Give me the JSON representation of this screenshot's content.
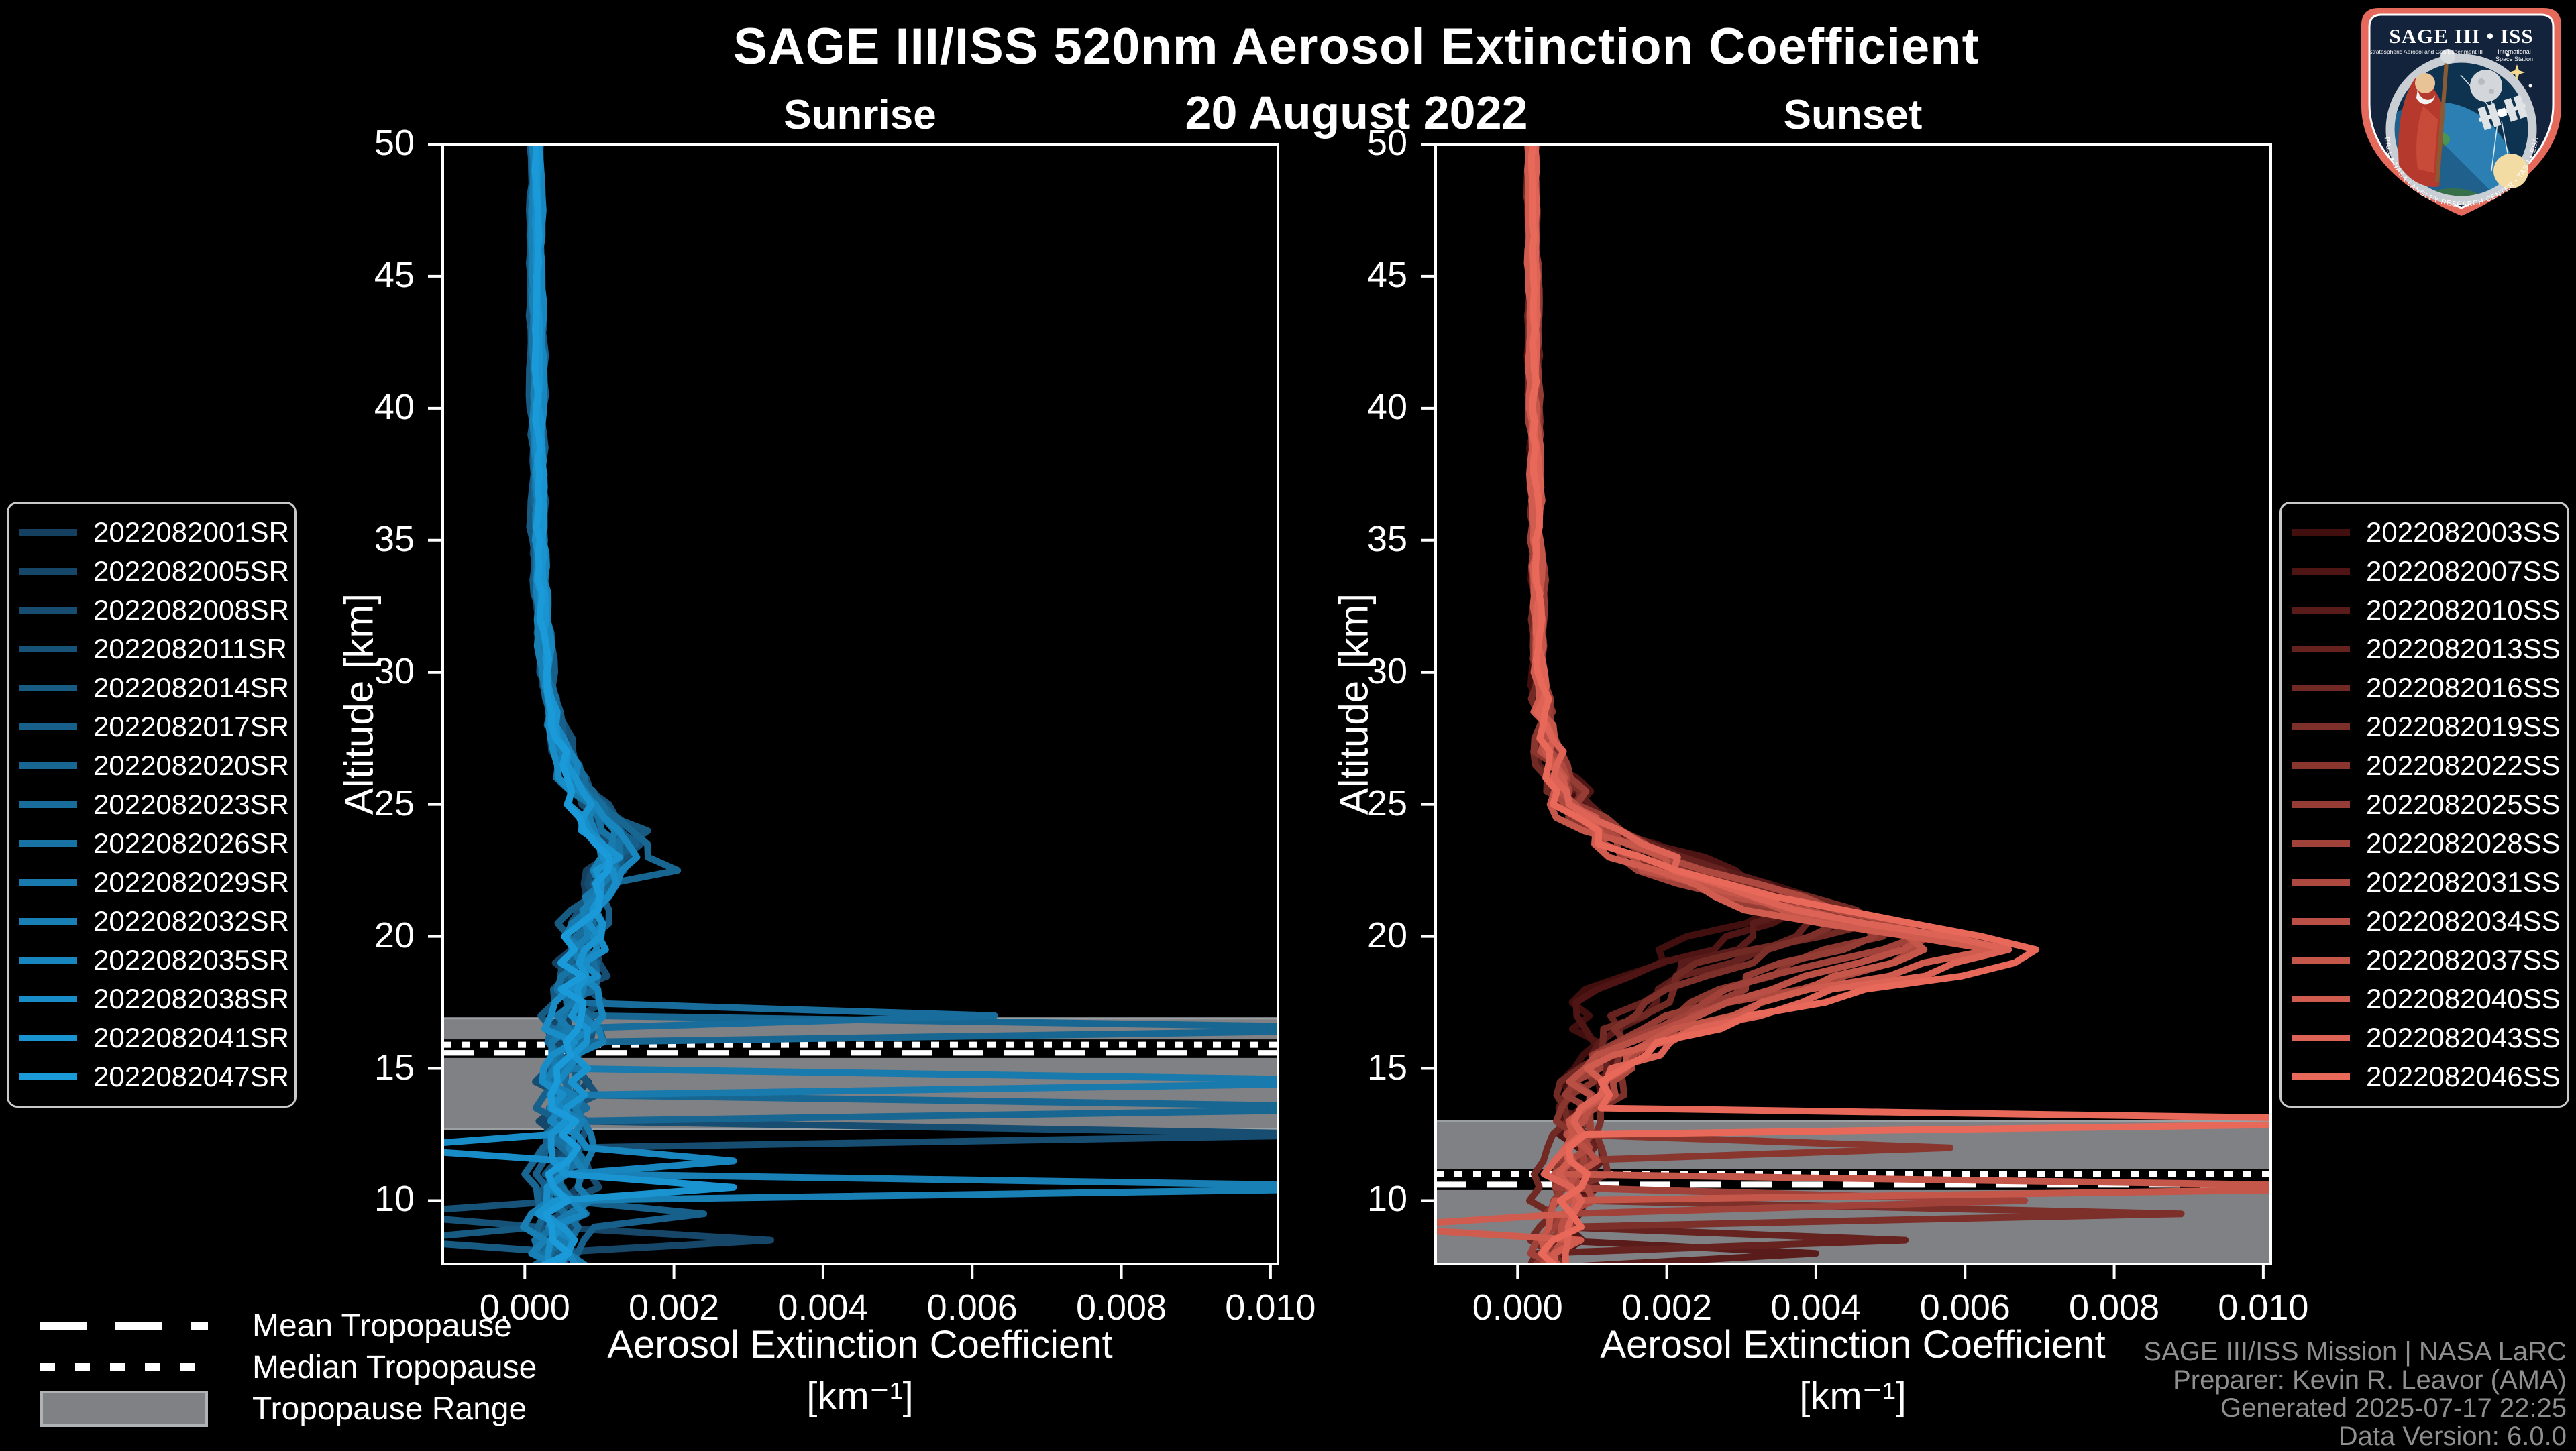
{
  "header": {
    "title": "SAGE III/ISS 520nm Aerosol Extinction Coefficient",
    "date": "20 August 2022"
  },
  "footer": {
    "lines": [
      "SAGE III/ISS Mission | NASA LaRC",
      "Preparer: Kevin R. Leavor (AMA)",
      "Generated 2025-07-17 22:25",
      "Data Version: 6.0.0"
    ]
  },
  "logo": {
    "title": "SAGE III • ISS",
    "subtitle_left": "Stratospheric Aerosol and Gas Experiment III",
    "subtitle_right_1": "International",
    "subtitle_right_2": "Space Station",
    "ring_text": "BALL • NASA LANGLEY RESEARCH CENTER • TAS-I • ESA"
  },
  "tropopause_legend": {
    "mean": "Mean Tropopause",
    "median": "Median Tropopause",
    "range": "Tropopause Range"
  },
  "colors": {
    "background": "#000000",
    "axis": "#ffffff",
    "band": "#7f8184",
    "band_edge": "#9aa0a4",
    "legend_border": "#c9c9c9",
    "footer_text": "#8f8f8f",
    "sunrise_dark": "#16405f",
    "sunrise_bright": "#1a9ad9",
    "sunset_dark": "#420f0f",
    "sunset_bright": "#e8695a"
  },
  "chart_data": [
    {
      "type": "line",
      "panel": "sunrise",
      "title": "Sunrise",
      "xlabel": "Aerosol Extinction Coefficient",
      "xlabel_units": "[km⁻¹]",
      "ylabel": "Altitude [km]",
      "xlim": [
        -0.0011,
        0.0101
      ],
      "ylim": [
        7.6,
        50
      ],
      "xticks": [
        0.0,
        0.002,
        0.004,
        0.006,
        0.008,
        0.01
      ],
      "xtick_labels": [
        "0.000",
        "0.002",
        "0.004",
        "0.006",
        "0.008",
        "0.010"
      ],
      "yticks": [
        10,
        15,
        20,
        25,
        30,
        35,
        40,
        45,
        50
      ],
      "grid": false,
      "tropopause": {
        "mean_km": 15.6,
        "median_km": 15.9,
        "range_km": [
          12.7,
          16.9
        ]
      },
      "profile_model": {
        "peak_center_km": 23.5,
        "sigma_scale_km": 2.0,
        "sigma_shift_km": 4.0,
        "base_profile": [
          [
            8,
            0.00045
          ],
          [
            10,
            0.0005
          ],
          [
            12,
            0.00055
          ],
          [
            14,
            0.0006
          ],
          [
            16,
            0.00065
          ],
          [
            18,
            0.0007
          ],
          [
            20,
            0.00075
          ],
          [
            21,
            0.0008
          ],
          [
            22,
            0.00085
          ],
          [
            23,
            0.00095
          ],
          [
            23.5,
            0.001
          ],
          [
            24,
            0.0009
          ],
          [
            25,
            0.0007
          ],
          [
            26,
            0.0006
          ],
          [
            28,
            0.0004
          ],
          [
            30,
            0.00028
          ],
          [
            35,
            0.0002
          ],
          [
            40,
            0.00018
          ],
          [
            50,
            0.00015
          ]
        ],
        "noise_amp": [
          [
            8,
            0.00032
          ],
          [
            14,
            0.0003
          ],
          [
            17,
            0.0003
          ],
          [
            20,
            0.00022
          ],
          [
            24,
            0.00018
          ],
          [
            27,
            0.0001
          ],
          [
            30,
            4e-05
          ],
          [
            50,
            2e-05
          ]
        ]
      },
      "series": [
        {
          "name": "2022082001SR",
          "color": "#16405f",
          "seed": 11,
          "offset": -6e-05,
          "peak_scale": 1.35,
          "peak_shift": -0.8,
          "spikes": []
        },
        {
          "name": "2022082005SR",
          "color": "#164668",
          "seed": 22,
          "offset": 2e-05,
          "peak_scale": 1.5,
          "peak_shift": -0.7,
          "spikes": [
            [
              8.4,
              0.0033
            ]
          ]
        },
        {
          "name": "2022082008SR",
          "color": "#174d70",
          "seed": 33,
          "offset": -3e-05,
          "peak_scale": 1.3,
          "peak_shift": -0.6,
          "spikes": [
            [
              12.5,
              0.0113
            ]
          ]
        },
        {
          "name": "2022082011SR",
          "color": "#175379",
          "seed": 44,
          "offset": 5e-05,
          "peak_scale": 1.45,
          "peak_shift": -0.5,
          "spikes": [
            [
              9.4,
              -0.002
            ]
          ]
        },
        {
          "name": "2022082014SR",
          "color": "#175a82",
          "seed": 55,
          "offset": -8e-05,
          "peak_scale": 1.6,
          "peak_shift": -0.4,
          "spikes": [
            [
              23.8,
              0.00165
            ],
            [
              8.3,
              -0.0018
            ]
          ]
        },
        {
          "name": "2022082017SR",
          "color": "#17608b",
          "seed": 66,
          "offset": 7e-05,
          "peak_scale": 1.4,
          "peak_shift": -0.3,
          "spikes": [
            [
              9.6,
              0.0024
            ]
          ]
        },
        {
          "name": "2022082020SR",
          "color": "#186793",
          "seed": 77,
          "offset": -2e-05,
          "peak_scale": 1.7,
          "peak_shift": -0.2,
          "spikes": [
            [
              22.6,
              0.00205
            ],
            [
              16.5,
              0.0125
            ],
            [
              13.4,
              0.0125
            ]
          ]
        },
        {
          "name": "2022082023SR",
          "color": "#186d9c",
          "seed": 88,
          "offset": 4e-05,
          "peak_scale": 1.3,
          "peak_shift": -0.1,
          "spikes": [
            [
              17.0,
              0.0063
            ]
          ]
        },
        {
          "name": "2022082026SR",
          "color": "#1873a5",
          "seed": 99,
          "offset": -5e-05,
          "peak_scale": 1.25,
          "peak_shift": 0.0,
          "spikes": []
        },
        {
          "name": "2022082029SR",
          "color": "#197aad",
          "seed": 110,
          "offset": 1e-05,
          "peak_scale": 1.35,
          "peak_shift": 0.1,
          "spikes": [
            [
              14.6,
              0.0125
            ]
          ]
        },
        {
          "name": "2022082032SR",
          "color": "#1980b6",
          "seed": 121,
          "offset": -4e-05,
          "peak_scale": 1.2,
          "peak_shift": 0.2,
          "spikes": [
            [
              10.35,
              0.0125
            ]
          ]
        },
        {
          "name": "2022082035SR",
          "color": "#1987bf",
          "seed": 132,
          "offset": 6e-05,
          "peak_scale": 1.25,
          "peak_shift": 0.25,
          "spikes": [
            [
              11.5,
              0.0028
            ]
          ]
        },
        {
          "name": "2022082038SR",
          "color": "#198dc8",
          "seed": 143,
          "offset": -1e-05,
          "peak_scale": 1.2,
          "peak_shift": 0.3,
          "spikes": [
            [
              12.2,
              -0.002
            ]
          ]
        },
        {
          "name": "2022082041SR",
          "color": "#1a94d0",
          "seed": 154,
          "offset": 3e-05,
          "peak_scale": 1.15,
          "peak_shift": 0.4,
          "spikes": [
            [
              10.6,
              0.0028
            ]
          ]
        },
        {
          "name": "2022082047SR",
          "color": "#1a9ad9",
          "seed": 165,
          "offset": 0.0,
          "peak_scale": 1.2,
          "peak_shift": 0.5,
          "spikes": []
        }
      ]
    },
    {
      "type": "line",
      "panel": "sunset",
      "title": "Sunset",
      "xlabel": "Aerosol Extinction Coefficient",
      "xlabel_units": "[km⁻¹]",
      "ylabel": "Altitude [km]",
      "xlim": [
        -0.0011,
        0.0101
      ],
      "ylim": [
        7.6,
        50
      ],
      "xticks": [
        0.0,
        0.002,
        0.004,
        0.006,
        0.008,
        0.01
      ],
      "xtick_labels": [
        "0.000",
        "0.002",
        "0.004",
        "0.006",
        "0.008",
        "0.010"
      ],
      "yticks": [
        10,
        15,
        20,
        25,
        30,
        35,
        40,
        45,
        50
      ],
      "grid": false,
      "tropopause": {
        "mean_km": 10.6,
        "median_km": 11.0,
        "range_km": [
          7.6,
          13.0
        ]
      },
      "profile_model": {
        "peak_center_km": 19.6,
        "sigma_scale_km": 3.2,
        "sigma_shift_km": 5.0,
        "base_profile": [
          [
            8,
            0.00065
          ],
          [
            9,
            0.0007
          ],
          [
            10,
            0.0007
          ],
          [
            11,
            0.00075
          ],
          [
            12,
            0.0008
          ],
          [
            13,
            0.0009
          ],
          [
            14,
            0.001
          ],
          [
            15,
            0.0012
          ],
          [
            16,
            0.0017
          ],
          [
            17,
            0.0026
          ],
          [
            18,
            0.0036
          ],
          [
            19,
            0.0047
          ],
          [
            19.5,
            0.005
          ],
          [
            20,
            0.0042
          ],
          [
            21,
            0.003
          ],
          [
            22,
            0.0022
          ],
          [
            23,
            0.0015
          ],
          [
            24,
            0.001
          ],
          [
            25,
            0.0007
          ],
          [
            27,
            0.0004
          ],
          [
            30,
            0.0003
          ],
          [
            40,
            0.00022
          ],
          [
            50,
            0.0002
          ]
        ],
        "noise_amp": [
          [
            8,
            0.0003
          ],
          [
            13,
            0.00025
          ],
          [
            16,
            0.0003
          ],
          [
            19,
            0.0004
          ],
          [
            22,
            0.0004
          ],
          [
            26,
            0.0002
          ],
          [
            30,
            5e-05
          ],
          [
            50,
            2e-05
          ]
        ]
      },
      "series": [
        {
          "name": "2022082003SS",
          "color": "#420f0f",
          "seed": 201,
          "offset": -5e-05,
          "peak_scale": 0.72,
          "peak_shift": -2.2,
          "spikes": []
        },
        {
          "name": "2022082007SS",
          "color": "#4e1514",
          "seed": 212,
          "offset": 3e-05,
          "peak_scale": 0.76,
          "peak_shift": -2.0,
          "spikes": []
        },
        {
          "name": "2022082010SS",
          "color": "#5a1c1a",
          "seed": 223,
          "offset": -2e-05,
          "peak_scale": 0.8,
          "peak_shift": -1.8,
          "spikes": [
            [
              8.2,
              0.004
            ]
          ]
        },
        {
          "name": "2022082013SS",
          "color": "#66221f",
          "seed": 234,
          "offset": 4e-05,
          "peak_scale": 0.84,
          "peak_shift": -1.6,
          "spikes": [
            [
              8.7,
              0.0052
            ]
          ]
        },
        {
          "name": "2022082016SS",
          "color": "#712924",
          "seed": 245,
          "offset": -6e-05,
          "peak_scale": 0.88,
          "peak_shift": -1.4,
          "spikes": []
        },
        {
          "name": "2022082019SS",
          "color": "#7d2f2a",
          "seed": 256,
          "offset": 2e-05,
          "peak_scale": 0.92,
          "peak_shift": -1.2,
          "spikes": [
            [
              9.3,
              0.0089
            ]
          ]
        },
        {
          "name": "2022082022SS",
          "color": "#89362f",
          "seed": 267,
          "offset": -3e-05,
          "peak_scale": 0.96,
          "peak_shift": -1.0,
          "spikes": [
            [
              11.9,
              0.0058
            ]
          ]
        },
        {
          "name": "2022082025SS",
          "color": "#953c35",
          "seed": 278,
          "offset": 5e-05,
          "peak_scale": 1.0,
          "peak_shift": -0.8,
          "spikes": []
        },
        {
          "name": "2022082028SS",
          "color": "#a1423a",
          "seed": 289,
          "offset": -4e-05,
          "peak_scale": 1.05,
          "peak_shift": -0.6,
          "spikes": [
            [
              10.05,
              0.0068
            ]
          ]
        },
        {
          "name": "2022082031SS",
          "color": "#ad493f",
          "seed": 300,
          "offset": 1e-05,
          "peak_scale": 1.1,
          "peak_shift": -0.45,
          "spikes": []
        },
        {
          "name": "2022082034SS",
          "color": "#b94f45",
          "seed": 311,
          "offset": -2e-05,
          "peak_scale": 1.14,
          "peak_shift": -0.3,
          "spikes": []
        },
        {
          "name": "2022082037SS",
          "color": "#c4564a",
          "seed": 322,
          "offset": 3e-05,
          "peak_scale": 1.18,
          "peak_shift": -0.2,
          "spikes": [
            [
              10.65,
              0.0125
            ]
          ]
        },
        {
          "name": "2022082040SS",
          "color": "#d05c4f",
          "seed": 333,
          "offset": -5e-05,
          "peak_scale": 1.22,
          "peak_shift": -0.1,
          "spikes": [
            [
              8.9,
              -0.002
            ]
          ]
        },
        {
          "name": "2022082043SS",
          "color": "#dc6355",
          "seed": 344,
          "offset": 2e-05,
          "peak_scale": 1.28,
          "peak_shift": -0.05,
          "spikes": []
        },
        {
          "name": "2022082046SS",
          "color": "#e8695a",
          "seed": 355,
          "offset": 0.0,
          "peak_scale": 1.35,
          "peak_shift": 0.0,
          "spikes": [
            [
              12.8,
              0.0135
            ]
          ]
        }
      ]
    }
  ]
}
